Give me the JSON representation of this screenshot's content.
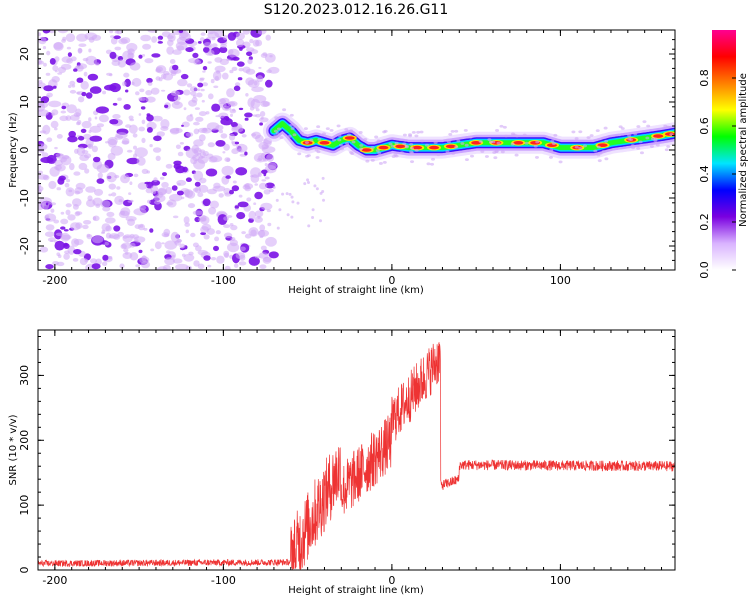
{
  "figure_title": "S120.2023.012.16.26.G11",
  "chart_data": [
    {
      "type": "heatmap",
      "xlabel": "Height of straight line (km)",
      "ylabel": "Frequency (Hz)",
      "xlim": [
        -210,
        168
      ],
      "ylim": [
        -25,
        25
      ],
      "xticks": [
        -200,
        -100,
        0,
        100
      ],
      "yticks": [
        -20,
        -10,
        0,
        10,
        20
      ],
      "colorbar": {
        "label": "Normalized spectral amplitude",
        "range": [
          0,
          1
        ],
        "ticks": [
          "0.0",
          "0.2",
          "0.4",
          "0.6",
          "0.8"
        ],
        "colors": [
          "#ffffff",
          "#d9b3ff",
          "#7a00e0",
          "#0000ff",
          "#00e5ff",
          "#00ff00",
          "#ffff00",
          "#ff7f00",
          "#ff0000",
          "#ff0090"
        ]
      },
      "noise_region_x": [
        -210,
        -70
      ],
      "ridge": {
        "x": [
          -70,
          -65,
          -60,
          -55,
          -50,
          -45,
          -40,
          -35,
          -30,
          -25,
          -20,
          -15,
          -10,
          -5,
          0,
          10,
          20,
          30,
          40,
          50,
          60,
          70,
          80,
          90,
          100,
          110,
          120,
          130,
          140,
          150,
          160,
          168
        ],
        "y": [
          4,
          5.5,
          4,
          2,
          1.5,
          2,
          1.5,
          1,
          2,
          2.5,
          1,
          0,
          0,
          0.5,
          1,
          0.5,
          0.5,
          0.5,
          1,
          1.5,
          1.5,
          1.5,
          1.5,
          1.5,
          0.5,
          0.5,
          0.5,
          1.5,
          2,
          2.5,
          3,
          3.5
        ]
      }
    },
    {
      "type": "line",
      "xlabel": "Height of straight line (km)",
      "ylabel": "SNR (10 * v/v)",
      "xlim": [
        -210,
        168
      ],
      "ylim": [
        0,
        370
      ],
      "xticks": [
        -200,
        -100,
        0,
        100
      ],
      "yticks": [
        0,
        100,
        200,
        300
      ],
      "color": "#ee3333",
      "segments": [
        {
          "x": [
            -210,
            -60
          ],
          "mean": [
            10,
            12
          ],
          "noise": 5
        },
        {
          "x": [
            -60,
            -30
          ],
          "mean": [
            20,
            160
          ],
          "noise": 55
        },
        {
          "x": [
            -30,
            0
          ],
          "mean": [
            120,
            200
          ],
          "noise": 45
        },
        {
          "x": [
            0,
            29
          ],
          "mean": [
            230,
            330
          ],
          "noise": 40
        },
        {
          "x": [
            29,
            40
          ],
          "mean": [
            130,
            140
          ],
          "noise": 8
        },
        {
          "x": [
            40,
            168
          ],
          "mean": [
            162,
            160
          ],
          "noise": 8
        }
      ]
    }
  ]
}
